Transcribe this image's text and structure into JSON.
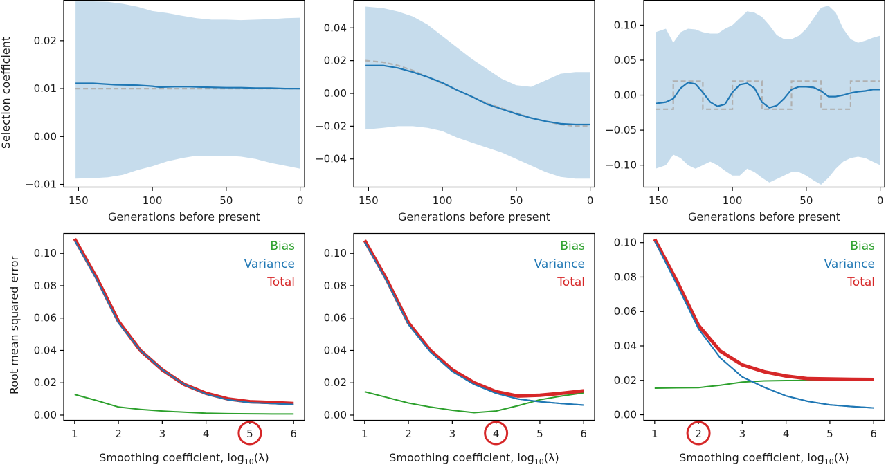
{
  "colors": {
    "blue": "#1f77b4",
    "band": "#c6dcec",
    "green": "#2ca02c",
    "red": "#d62728",
    "truth": "#b0b0b0",
    "highlight": "#d62728"
  },
  "labels": {
    "top_xlabel": "Generations before present",
    "top_ylabel": "Selection coefficient",
    "bottom_xlabel_main": "Smoothing coefficient, log",
    "bottom_xlabel_sub": "10",
    "bottom_xlabel_end": "(λ)",
    "bottom_ylabel": "Root mean squared error"
  },
  "chart_data": [
    {
      "id": "a",
      "type": "line",
      "row": "top",
      "title": "",
      "xlabel": "Generations before present",
      "ylabel": "Selection coefficient",
      "xlim": [
        160,
        -3
      ],
      "ylim": [
        -0.0105,
        0.0285
      ],
      "xticks": [
        150,
        100,
        50,
        0
      ],
      "xtick_labels": [
        "150",
        "100",
        "50",
        "0"
      ],
      "yticks": [
        -0.01,
        0.0,
        0.01,
        0.02
      ],
      "ytick_labels": [
        "−0.01",
        "0.00",
        "0.01",
        "0.02"
      ],
      "series": [
        {
          "name": "true selection",
          "style": "dashed",
          "x": [
            152,
            0
          ],
          "y": [
            0.01,
            0.01
          ]
        },
        {
          "name": "estimate",
          "style": "solid",
          "x": [
            152,
            140,
            125,
            110,
            100,
            95,
            85,
            75,
            65,
            50,
            40,
            30,
            20,
            10,
            0
          ],
          "y": [
            0.0111,
            0.0111,
            0.0108,
            0.0107,
            0.0105,
            0.0103,
            0.0104,
            0.0104,
            0.0103,
            0.0102,
            0.0102,
            0.0101,
            0.0101,
            0.01,
            0.01
          ]
        },
        {
          "name": "interval",
          "style": "band",
          "x": [
            152,
            140,
            130,
            120,
            110,
            100,
            90,
            80,
            70,
            60,
            50,
            40,
            30,
            20,
            10,
            0
          ],
          "upper": [
            0.0282,
            0.0282,
            0.0281,
            0.0277,
            0.0271,
            0.0262,
            0.0258,
            0.0252,
            0.0247,
            0.0244,
            0.0244,
            0.0243,
            0.0244,
            0.0245,
            0.0247,
            0.0248
          ],
          "lower": [
            -0.0088,
            -0.0087,
            -0.0085,
            -0.008,
            -0.007,
            -0.0062,
            -0.0052,
            -0.0045,
            -0.004,
            -0.004,
            -0.004,
            -0.0042,
            -0.0047,
            -0.0055,
            -0.0061,
            -0.0067
          ]
        }
      ]
    },
    {
      "id": "b",
      "type": "line",
      "row": "top",
      "title": "",
      "xlabel": "Generations before present",
      "ylabel": "",
      "xlim": [
        160,
        -3
      ],
      "ylim": [
        -0.057,
        0.057
      ],
      "xticks": [
        150,
        100,
        50,
        0
      ],
      "xtick_labels": [
        "150",
        "100",
        "50",
        "0"
      ],
      "yticks": [
        -0.04,
        -0.02,
        0.0,
        0.02,
        0.04
      ],
      "ytick_labels": [
        "−0.04",
        "−0.02",
        "0.00",
        "0.02",
        "0.04"
      ],
      "series": [
        {
          "name": "true selection",
          "style": "dashed",
          "x": [
            152,
            140,
            130,
            120,
            110,
            100,
            90,
            80,
            70,
            60,
            50,
            40,
            30,
            20,
            10,
            0
          ],
          "y": [
            0.02,
            0.019,
            0.017,
            0.014,
            0.01,
            0.006,
            0.002,
            -0.002,
            -0.006,
            -0.009,
            -0.012,
            -0.015,
            -0.017,
            -0.019,
            -0.02,
            -0.02
          ]
        },
        {
          "name": "estimate",
          "style": "solid",
          "x": [
            152,
            140,
            130,
            120,
            110,
            100,
            90,
            80,
            70,
            60,
            50,
            40,
            30,
            20,
            10,
            0
          ],
          "y": [
            0.017,
            0.017,
            0.0155,
            0.013,
            0.01,
            0.0065,
            0.002,
            -0.002,
            -0.0065,
            -0.0095,
            -0.0125,
            -0.015,
            -0.017,
            -0.0185,
            -0.019,
            -0.019
          ]
        },
        {
          "name": "interval",
          "style": "band",
          "x": [
            152,
            140,
            130,
            120,
            110,
            100,
            90,
            80,
            70,
            60,
            50,
            40,
            30,
            20,
            10,
            0
          ],
          "upper": [
            0.053,
            0.052,
            0.05,
            0.047,
            0.042,
            0.035,
            0.028,
            0.021,
            0.015,
            0.009,
            0.005,
            0.004,
            0.008,
            0.012,
            0.013,
            0.013
          ],
          "lower": [
            -0.022,
            -0.021,
            -0.02,
            -0.02,
            -0.021,
            -0.023,
            -0.027,
            -0.03,
            -0.033,
            -0.036,
            -0.04,
            -0.044,
            -0.048,
            -0.051,
            -0.052,
            -0.052
          ]
        }
      ]
    },
    {
      "id": "c",
      "type": "line",
      "row": "top",
      "title": "",
      "xlabel": "Generations before present",
      "ylabel": "",
      "xlim": [
        160,
        -3
      ],
      "ylim": [
        -0.131,
        0.136
      ],
      "xticks": [
        150,
        100,
        50,
        0
      ],
      "xtick_labels": [
        "150",
        "100",
        "50",
        "0"
      ],
      "yticks": [
        -0.1,
        -0.05,
        0.0,
        0.05,
        0.1
      ],
      "ytick_labels": [
        "−0.10",
        "−0.05",
        "0.00",
        "0.05",
        "0.10"
      ],
      "series": [
        {
          "name": "true selection",
          "style": "dashed",
          "x": [
            152,
            140,
            140,
            120,
            120,
            100,
            100,
            80,
            80,
            60,
            60,
            40,
            40,
            20,
            20,
            0
          ],
          "y": [
            -0.02,
            -0.02,
            0.02,
            0.02,
            -0.02,
            -0.02,
            0.02,
            0.02,
            -0.02,
            -0.02,
            0.02,
            0.02,
            -0.02,
            -0.02,
            0.02,
            0.02
          ]
        },
        {
          "name": "estimate",
          "style": "solid",
          "x": [
            152,
            145,
            140,
            135,
            130,
            125,
            120,
            115,
            110,
            105,
            100,
            95,
            90,
            85,
            80,
            75,
            70,
            65,
            60,
            55,
            50,
            45,
            40,
            35,
            30,
            25,
            20,
            15,
            10,
            5,
            0
          ],
          "y": [
            -0.012,
            -0.01,
            -0.005,
            0.01,
            0.018,
            0.016,
            0.004,
            -0.01,
            -0.016,
            -0.013,
            0.004,
            0.015,
            0.017,
            0.01,
            -0.01,
            -0.018,
            -0.015,
            -0.005,
            0.008,
            0.012,
            0.012,
            0.011,
            0.006,
            -0.002,
            -0.002,
            0.0,
            0.003,
            0.005,
            0.006,
            0.008,
            0.008
          ]
        },
        {
          "name": "interval",
          "style": "band",
          "x": [
            152,
            145,
            140,
            135,
            130,
            125,
            120,
            115,
            110,
            105,
            100,
            95,
            90,
            85,
            80,
            75,
            70,
            65,
            60,
            55,
            50,
            45,
            40,
            35,
            30,
            25,
            20,
            15,
            10,
            5,
            0
          ],
          "upper": [
            0.09,
            0.095,
            0.075,
            0.09,
            0.095,
            0.094,
            0.09,
            0.088,
            0.088,
            0.095,
            0.1,
            0.11,
            0.12,
            0.118,
            0.112,
            0.1,
            0.086,
            0.08,
            0.08,
            0.085,
            0.095,
            0.11,
            0.125,
            0.128,
            0.118,
            0.095,
            0.08,
            0.075,
            0.078,
            0.082,
            0.085
          ],
          "lower": [
            -0.105,
            -0.1,
            -0.085,
            -0.09,
            -0.1,
            -0.105,
            -0.1,
            -0.095,
            -0.1,
            -0.108,
            -0.115,
            -0.115,
            -0.105,
            -0.11,
            -0.118,
            -0.125,
            -0.12,
            -0.115,
            -0.11,
            -0.11,
            -0.115,
            -0.122,
            -0.128,
            -0.118,
            -0.105,
            -0.095,
            -0.09,
            -0.088,
            -0.09,
            -0.095,
            -0.1
          ]
        }
      ]
    },
    {
      "id": "d",
      "type": "line",
      "row": "bottom",
      "title": "",
      "xlabel": "Smoothing coefficient, log10(λ)",
      "ylabel": "Root mean squared error",
      "xlim": [
        0.75,
        6.25
      ],
      "ylim": [
        -0.003,
        0.1125
      ],
      "xticks": [
        1,
        2,
        3,
        4,
        5,
        6
      ],
      "xtick_labels": [
        "1",
        "2",
        "3",
        "4",
        "5",
        "6"
      ],
      "yticks": [
        0.0,
        0.02,
        0.04,
        0.06,
        0.08,
        0.1
      ],
      "ytick_labels": [
        "0.00",
        "0.02",
        "0.04",
        "0.06",
        "0.08",
        "0.10"
      ],
      "highlight_x": 5,
      "legend": [
        "Bias",
        "Variance",
        "Total"
      ],
      "legend_position": "top-right",
      "series": [
        {
          "name": "Total",
          "x": [
            1,
            1.5,
            2,
            2.5,
            3,
            3.5,
            4,
            4.5,
            5,
            5.5,
            6
          ],
          "y": [
            0.109,
            0.085,
            0.058,
            0.04,
            0.028,
            0.019,
            0.0135,
            0.01,
            0.0083,
            0.0078,
            0.0072
          ]
        },
        {
          "name": "Variance",
          "x": [
            1,
            1.5,
            2,
            2.5,
            3,
            3.5,
            4,
            4.5,
            5,
            5.5,
            6
          ],
          "y": [
            0.108,
            0.084,
            0.057,
            0.04,
            0.028,
            0.019,
            0.013,
            0.0095,
            0.0077,
            0.0072,
            0.0066
          ]
        },
        {
          "name": "Bias",
          "x": [
            1,
            1.5,
            2,
            2.5,
            3,
            3.5,
            4,
            4.5,
            5,
            5.5,
            6
          ],
          "y": [
            0.0128,
            0.009,
            0.005,
            0.0035,
            0.0025,
            0.0018,
            0.0012,
            0.0009,
            0.0008,
            0.0007,
            0.0007
          ]
        }
      ]
    },
    {
      "id": "e",
      "type": "line",
      "row": "bottom",
      "title": "",
      "xlabel": "Smoothing coefficient, log10(λ)",
      "ylabel": "",
      "xlim": [
        0.75,
        6.25
      ],
      "ylim": [
        -0.003,
        0.1125
      ],
      "xticks": [
        1,
        2,
        3,
        4,
        5,
        6
      ],
      "xtick_labels": [
        "1",
        "2",
        "3",
        "4",
        "5",
        "6"
      ],
      "yticks": [
        0.0,
        0.02,
        0.04,
        0.06,
        0.08,
        0.1
      ],
      "ytick_labels": [
        "0.00",
        "0.02",
        "0.04",
        "0.06",
        "0.08",
        "0.10"
      ],
      "highlight_x": 4,
      "legend": [
        "Bias",
        "Variance",
        "Total"
      ],
      "legend_position": "top-right",
      "series": [
        {
          "name": "Total",
          "x": [
            1,
            1.5,
            2,
            2.5,
            3,
            3.5,
            4,
            4.5,
            5,
            5.5,
            6
          ],
          "y": [
            0.108,
            0.084,
            0.057,
            0.04,
            0.028,
            0.02,
            0.0145,
            0.0118,
            0.0123,
            0.0135,
            0.015
          ]
        },
        {
          "name": "Variance",
          "x": [
            1,
            1.5,
            2,
            2.5,
            3,
            3.5,
            4,
            4.5,
            5,
            5.5,
            6
          ],
          "y": [
            0.107,
            0.083,
            0.056,
            0.039,
            0.027,
            0.019,
            0.0135,
            0.01,
            0.0083,
            0.0072,
            0.0062
          ]
        },
        {
          "name": "Bias",
          "x": [
            1,
            1.5,
            2,
            2.5,
            3,
            3.5,
            4,
            4.5,
            5,
            5.5,
            6
          ],
          "y": [
            0.0145,
            0.011,
            0.0075,
            0.005,
            0.003,
            0.0015,
            0.0025,
            0.0058,
            0.0095,
            0.0118,
            0.0138
          ]
        }
      ]
    },
    {
      "id": "f",
      "type": "line",
      "row": "bottom",
      "title": "",
      "xlabel": "Smoothing coefficient, log10(λ)",
      "ylabel": "",
      "xlim": [
        0.75,
        6.25
      ],
      "ylim": [
        -0.003,
        0.1055
      ],
      "xticks": [
        1,
        2,
        3,
        4,
        5,
        6
      ],
      "xtick_labels": [
        "1",
        "2",
        "3",
        "4",
        "5",
        "6"
      ],
      "yticks": [
        0.0,
        0.02,
        0.04,
        0.06,
        0.08,
        0.1
      ],
      "ytick_labels": [
        "0.00",
        "0.02",
        "0.04",
        "0.06",
        "0.08",
        "0.10"
      ],
      "highlight_x": 2,
      "legend": [
        "Bias",
        "Variance",
        "Total"
      ],
      "legend_position": "top-right",
      "series": [
        {
          "name": "Total",
          "x": [
            1,
            1.5,
            2,
            2.5,
            3,
            3.5,
            4,
            4.5,
            5,
            5.5,
            6
          ],
          "y": [
            0.102,
            0.078,
            0.052,
            0.037,
            0.029,
            0.025,
            0.0225,
            0.021,
            0.0208,
            0.0206,
            0.0205
          ]
        },
        {
          "name": "Variance",
          "x": [
            1,
            1.5,
            2,
            2.5,
            3,
            3.5,
            4,
            4.5,
            5,
            5.5,
            6
          ],
          "y": [
            0.101,
            0.076,
            0.05,
            0.033,
            0.022,
            0.016,
            0.011,
            0.0078,
            0.0058,
            0.0048,
            0.004
          ]
        },
        {
          "name": "Bias",
          "x": [
            1,
            1.5,
            2,
            2.5,
            3,
            3.5,
            4,
            4.5,
            5,
            5.5,
            6
          ],
          "y": [
            0.0155,
            0.0157,
            0.0158,
            0.0172,
            0.019,
            0.0197,
            0.0199,
            0.02,
            0.02,
            0.02,
            0.0199
          ]
        }
      ]
    }
  ]
}
